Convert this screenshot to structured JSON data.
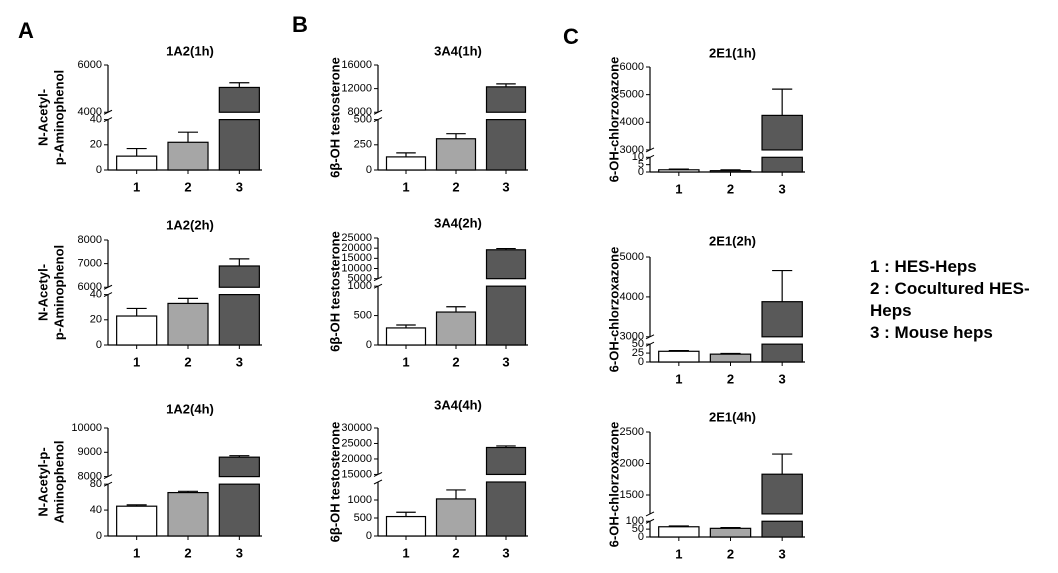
{
  "panels": [
    "A",
    "B",
    "C"
  ],
  "legend": [
    "1 : HES-Heps",
    "2 : Cocultured HES-Heps",
    "3 : Mouse heps"
  ],
  "chart_data": [
    {
      "type": "bar",
      "title": "1A2(1h)",
      "ylabel": [
        "N-Acetyl-",
        "p-Aminophenol"
      ],
      "categories": [
        "1",
        "2",
        "3"
      ],
      "values": [
        11,
        22,
        5050
      ],
      "errors": [
        6,
        8,
        200
      ],
      "colors": [
        "#ffffff",
        "#a6a6a6",
        "#595959"
      ],
      "segments": [
        {
          "ylim": [
            0,
            40
          ],
          "yticks": [
            0,
            20,
            40
          ]
        },
        {
          "ylim": [
            4000,
            6000
          ],
          "yticks": [
            4000,
            6000
          ]
        }
      ]
    },
    {
      "type": "bar",
      "title": "1A2(2h)",
      "ylabel": [
        "N-Acetyl-",
        "p-Aminophenol"
      ],
      "categories": [
        "1",
        "2",
        "3"
      ],
      "values": [
        23,
        33,
        6900
      ],
      "errors": [
        6,
        4,
        300
      ],
      "colors": [
        "#ffffff",
        "#a6a6a6",
        "#595959"
      ],
      "segments": [
        {
          "ylim": [
            0,
            40
          ],
          "yticks": [
            0,
            20,
            40
          ]
        },
        {
          "ylim": [
            6000,
            8000
          ],
          "yticks": [
            6000,
            7000,
            8000
          ]
        }
      ]
    },
    {
      "type": "bar",
      "title": "1A2(4h)",
      "ylabel": [
        "N-Acetyl-p-",
        "Aminophenol"
      ],
      "categories": [
        "1",
        "2",
        "3"
      ],
      "values": [
        46,
        67,
        8800
      ],
      "errors": [
        2,
        2,
        60
      ],
      "colors": [
        "#ffffff",
        "#a6a6a6",
        "#595959"
      ],
      "segments": [
        {
          "ylim": [
            0,
            80
          ],
          "yticks": [
            0,
            40,
            80
          ]
        },
        {
          "ylim": [
            8000,
            10000
          ],
          "yticks": [
            8000,
            9000,
            10000
          ]
        }
      ]
    },
    {
      "type": "bar",
      "title": "3A4(1h)",
      "ylabel": [
        "6β-OH testosterone"
      ],
      "categories": [
        "1",
        "2",
        "3"
      ],
      "values": [
        130,
        310,
        12300
      ],
      "errors": [
        40,
        50,
        500
      ],
      "colors": [
        "#ffffff",
        "#a6a6a6",
        "#595959"
      ],
      "segments": [
        {
          "ylim": [
            0,
            500
          ],
          "yticks": [
            0,
            250,
            500
          ]
        },
        {
          "ylim": [
            8000,
            16000
          ],
          "yticks": [
            8000,
            12000,
            16000
          ]
        }
      ]
    },
    {
      "type": "bar",
      "title": "3A4(2h)",
      "ylabel": [
        "6β-OH testosterone"
      ],
      "categories": [
        "1",
        "2",
        "3"
      ],
      "values": [
        290,
        560,
        19200
      ],
      "errors": [
        50,
        90,
        600
      ],
      "colors": [
        "#ffffff",
        "#a6a6a6",
        "#595959"
      ],
      "segments": [
        {
          "ylim": [
            0,
            1000
          ],
          "yticks": [
            0,
            500,
            1000
          ]
        },
        {
          "ylim": [
            5000,
            25000
          ],
          "yticks": [
            5000,
            10000,
            15000,
            20000,
            25000
          ]
        }
      ]
    },
    {
      "type": "bar",
      "title": "3A4(4h)",
      "ylabel": [
        "6β-OH testosterone"
      ],
      "categories": [
        "1",
        "2",
        "3"
      ],
      "values": [
        540,
        1030,
        23700
      ],
      "errors": [
        120,
        250,
        500
      ],
      "colors": [
        "#ffffff",
        "#a6a6a6",
        "#595959"
      ],
      "segments": [
        {
          "ylim": [
            0,
            1500
          ],
          "yticks": [
            0,
            500,
            1000
          ]
        },
        {
          "ylim": [
            15000,
            30000
          ],
          "yticks": [
            15000,
            20000,
            25000,
            30000
          ]
        }
      ]
    },
    {
      "type": "bar",
      "title": "2E1(1h)",
      "ylabel": [
        "6-OH-chlorzoxazone"
      ],
      "categories": [
        "1",
        "2",
        "3"
      ],
      "values": [
        1.5,
        0.9,
        4250
      ],
      "errors": [
        0.5,
        0.6,
        950
      ],
      "colors": [
        "#ffffff",
        "#a6a6a6",
        "#595959"
      ],
      "segments": [
        {
          "ylim": [
            0,
            10
          ],
          "yticks": [
            0,
            5,
            10
          ]
        },
        {
          "ylim": [
            3000,
            6000
          ],
          "yticks": [
            3000,
            4000,
            5000,
            6000
          ]
        }
      ]
    },
    {
      "type": "bar",
      "title": "2E1(2h)",
      "ylabel": [
        "6-OH-chlorzoxazone"
      ],
      "categories": [
        "1",
        "2",
        "3"
      ],
      "values": [
        30,
        22,
        3880
      ],
      "errors": [
        2,
        2,
        780
      ],
      "colors": [
        "#ffffff",
        "#a6a6a6",
        "#595959"
      ],
      "segments": [
        {
          "ylim": [
            0,
            50
          ],
          "yticks": [
            0,
            25,
            50
          ]
        },
        {
          "ylim": [
            3000,
            5000
          ],
          "yticks": [
            3000,
            4000,
            5000
          ]
        }
      ]
    },
    {
      "type": "bar",
      "title": "2E1(4h)",
      "ylabel": [
        "6-OH-chlorzoxazone"
      ],
      "categories": [
        "1",
        "2",
        "3"
      ],
      "values": [
        65,
        55,
        1830
      ],
      "errors": [
        5,
        5,
        320
      ],
      "colors": [
        "#ffffff",
        "#a6a6a6",
        "#595959"
      ],
      "segments": [
        {
          "ylim": [
            0,
            100
          ],
          "yticks": [
            0,
            50,
            100
          ]
        },
        {
          "ylim": [
            1200,
            2500
          ],
          "yticks": [
            1500,
            2000,
            2500
          ]
        }
      ]
    }
  ]
}
